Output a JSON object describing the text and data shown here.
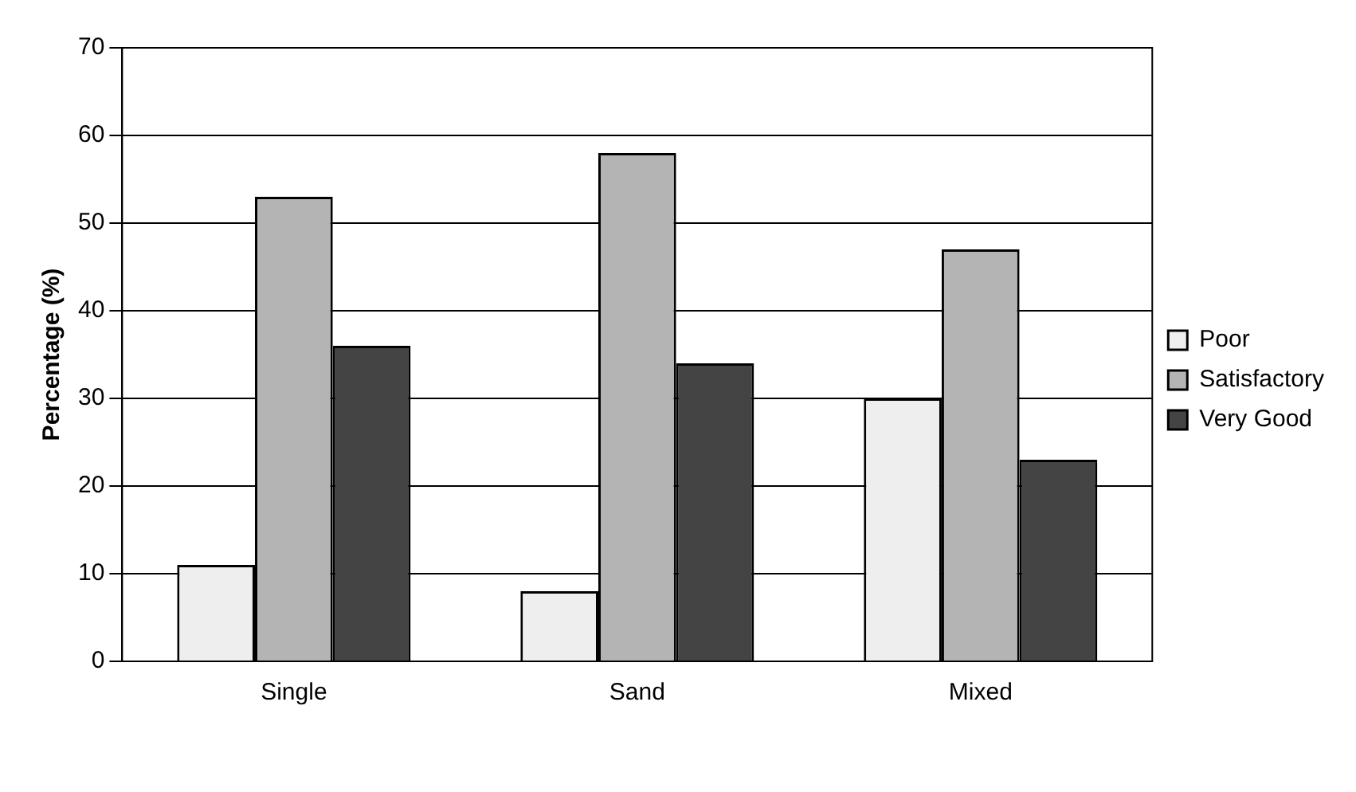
{
  "chart_data": {
    "type": "bar",
    "ylabel": "Percentage (%)",
    "categories": [
      "Single",
      "Sand",
      "Mixed"
    ],
    "series": [
      {
        "name": "Poor",
        "color": "#eeeeee",
        "values": [
          11,
          8,
          30
        ]
      },
      {
        "name": "Satisfactory",
        "color": "#b4b4b4",
        "values": [
          53,
          58,
          47
        ]
      },
      {
        "name": "Very Good",
        "color": "#444444",
        "values": [
          36,
          34,
          23
        ]
      }
    ],
    "ylim": [
      0,
      70
    ],
    "yticks": [
      0,
      10,
      20,
      30,
      40,
      50,
      60,
      70
    ],
    "grid": "y",
    "legend": "right"
  }
}
